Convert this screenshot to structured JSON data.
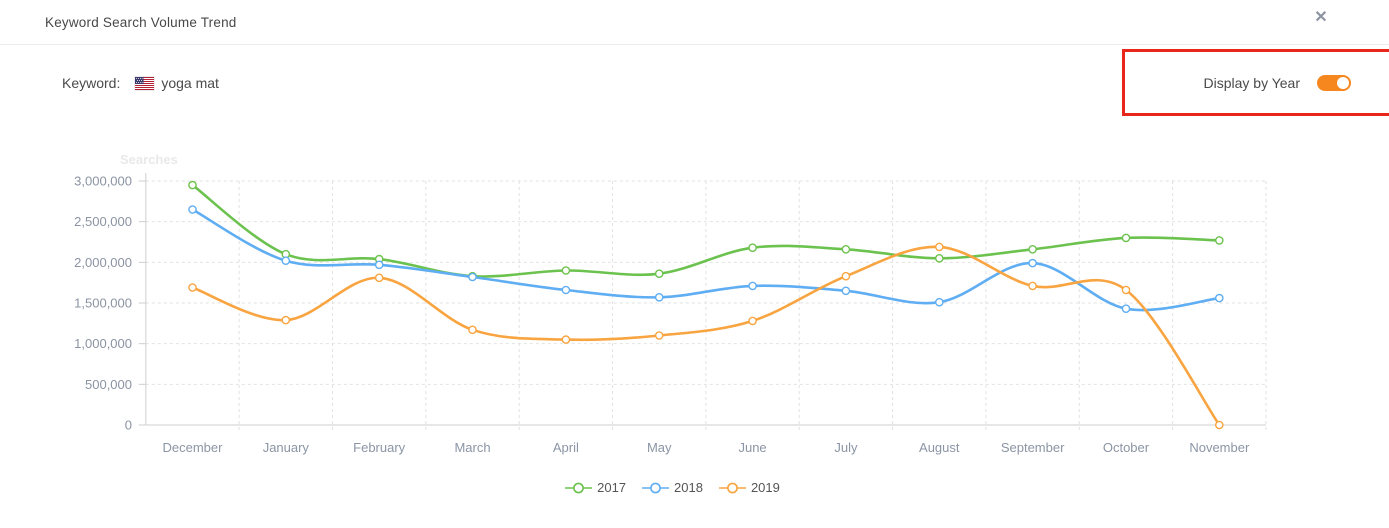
{
  "header": {
    "title": "Keyword Search Volume Trend",
    "close_icon": "✕"
  },
  "keyword": {
    "label": "Keyword:",
    "flag_icon": "us-flag-icon",
    "value": "yoga mat"
  },
  "display_toggle": {
    "label": "Display by Year",
    "state": "on",
    "toggle_color": "#f6871f",
    "annotation_color": "#e8271a"
  },
  "chart_data": {
    "type": "line",
    "title": "Searches",
    "categories": [
      "December",
      "January",
      "February",
      "March",
      "April",
      "May",
      "June",
      "July",
      "August",
      "September",
      "October",
      "November"
    ],
    "series": [
      {
        "name": "2017",
        "color": "#6cc24e",
        "values": [
          2950000,
          2100000,
          2040000,
          1830000,
          1900000,
          1860000,
          2180000,
          2160000,
          2050000,
          2160000,
          2300000,
          2270000
        ]
      },
      {
        "name": "2018",
        "color": "#5fadf2",
        "values": [
          2650000,
          2020000,
          1970000,
          1820000,
          1660000,
          1570000,
          1710000,
          1650000,
          1510000,
          1990000,
          1430000,
          1560000
        ]
      },
      {
        "name": "2019",
        "color": "#f8a440",
        "values": [
          1690000,
          1290000,
          1810000,
          1170000,
          1050000,
          1100000,
          1280000,
          1830000,
          2190000,
          1710000,
          1660000,
          0
        ]
      }
    ],
    "ylim": [
      0,
      3000000
    ],
    "ytick_step": 500000,
    "grid": "dashed",
    "legend_position": "bottom",
    "colors": {
      "gridline": "#e2e2e2",
      "axis": "#cfcfcf",
      "y_tick_label": "#8b93a3",
      "x_tick_label": "#8b95a5",
      "axis_title": "#e9e9e9",
      "legend_text": "#555555"
    }
  }
}
